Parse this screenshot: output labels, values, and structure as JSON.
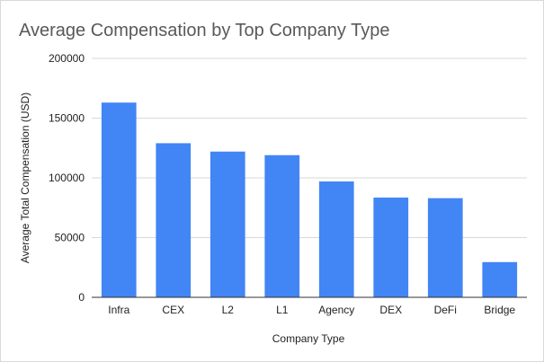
{
  "chart_data": {
    "type": "bar",
    "title": "Average Compensation by Top Company Type",
    "xlabel": "Company Type",
    "ylabel": "Average Total Compensation (USD)",
    "categories": [
      "Infra",
      "CEX",
      "L2",
      "L1",
      "Agency",
      "DEX",
      "DeFi",
      "Bridge"
    ],
    "values": [
      163000,
      129000,
      122000,
      119000,
      97000,
      83500,
      83000,
      29500
    ],
    "ylim": [
      0,
      200000
    ],
    "yticks": [
      0,
      50000,
      100000,
      150000,
      200000
    ],
    "ytick_labels": [
      "0",
      "50000",
      "100000",
      "150000",
      "200000"
    ],
    "grid": true,
    "legend": "none",
    "bar_color": "#4285f4"
  }
}
